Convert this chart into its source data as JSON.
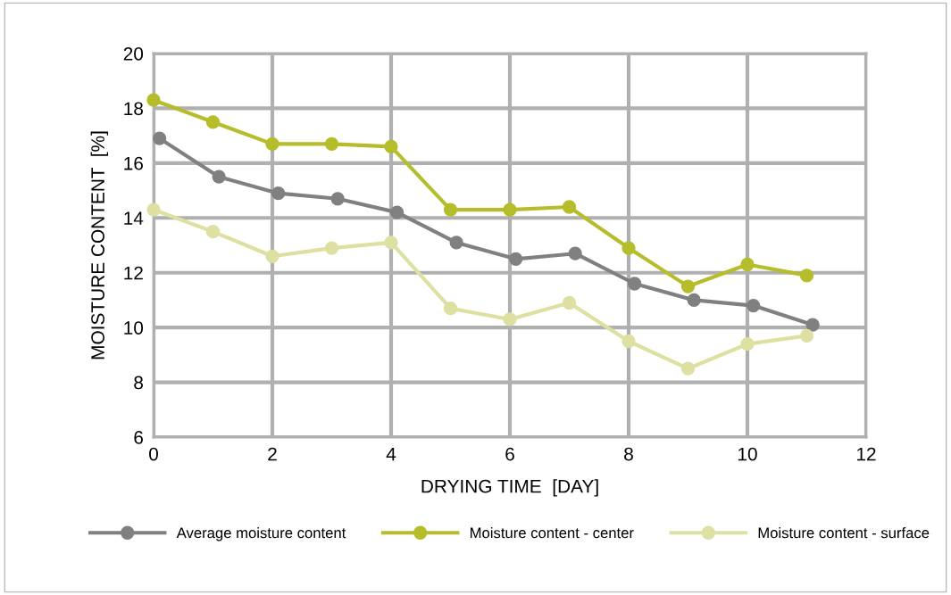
{
  "chart_data": {
    "type": "line",
    "xlabel": "DRYING TIME  [DAY]",
    "ylabel": "MOISTURE CONTENT  [%]",
    "xlim": [
      0,
      12
    ],
    "xticks": [
      0,
      2,
      4,
      6,
      8,
      10,
      12
    ],
    "ylim": [
      6,
      20
    ],
    "yticks": [
      6,
      8,
      10,
      12,
      14,
      16,
      18,
      20
    ],
    "grid": true,
    "legend": "bottom",
    "marker": "circle",
    "line_style": "solid",
    "series": [
      {
        "name": "Average moisture content",
        "color": "#808080",
        "x": [
          0.1,
          1.1,
          2.1,
          3.1,
          4.1,
          5.1,
          6.1,
          7.1,
          8.1,
          9.1,
          10.1,
          11.1
        ],
        "values": [
          16.9,
          15.5,
          14.9,
          14.7,
          14.2,
          13.1,
          12.5,
          12.7,
          11.6,
          11.0,
          10.8,
          10.1
        ]
      },
      {
        "name": "Moisture content - center",
        "color": "#b5bd2a",
        "x": [
          0,
          1,
          2,
          3,
          4,
          5,
          6,
          7,
          8,
          9,
          10,
          11
        ],
        "values": [
          18.3,
          17.5,
          16.7,
          16.7,
          16.6,
          14.3,
          14.3,
          14.4,
          12.9,
          11.5,
          12.3,
          11.9
        ]
      },
      {
        "name": "Moisture content - surface",
        "color": "#dde0a0",
        "x": [
          0,
          1,
          2,
          3,
          4,
          5,
          6,
          7,
          8,
          9,
          10,
          11
        ],
        "values": [
          14.3,
          13.5,
          12.6,
          12.9,
          13.1,
          10.7,
          10.3,
          10.9,
          9.5,
          8.5,
          9.4,
          9.7
        ]
      }
    ]
  }
}
